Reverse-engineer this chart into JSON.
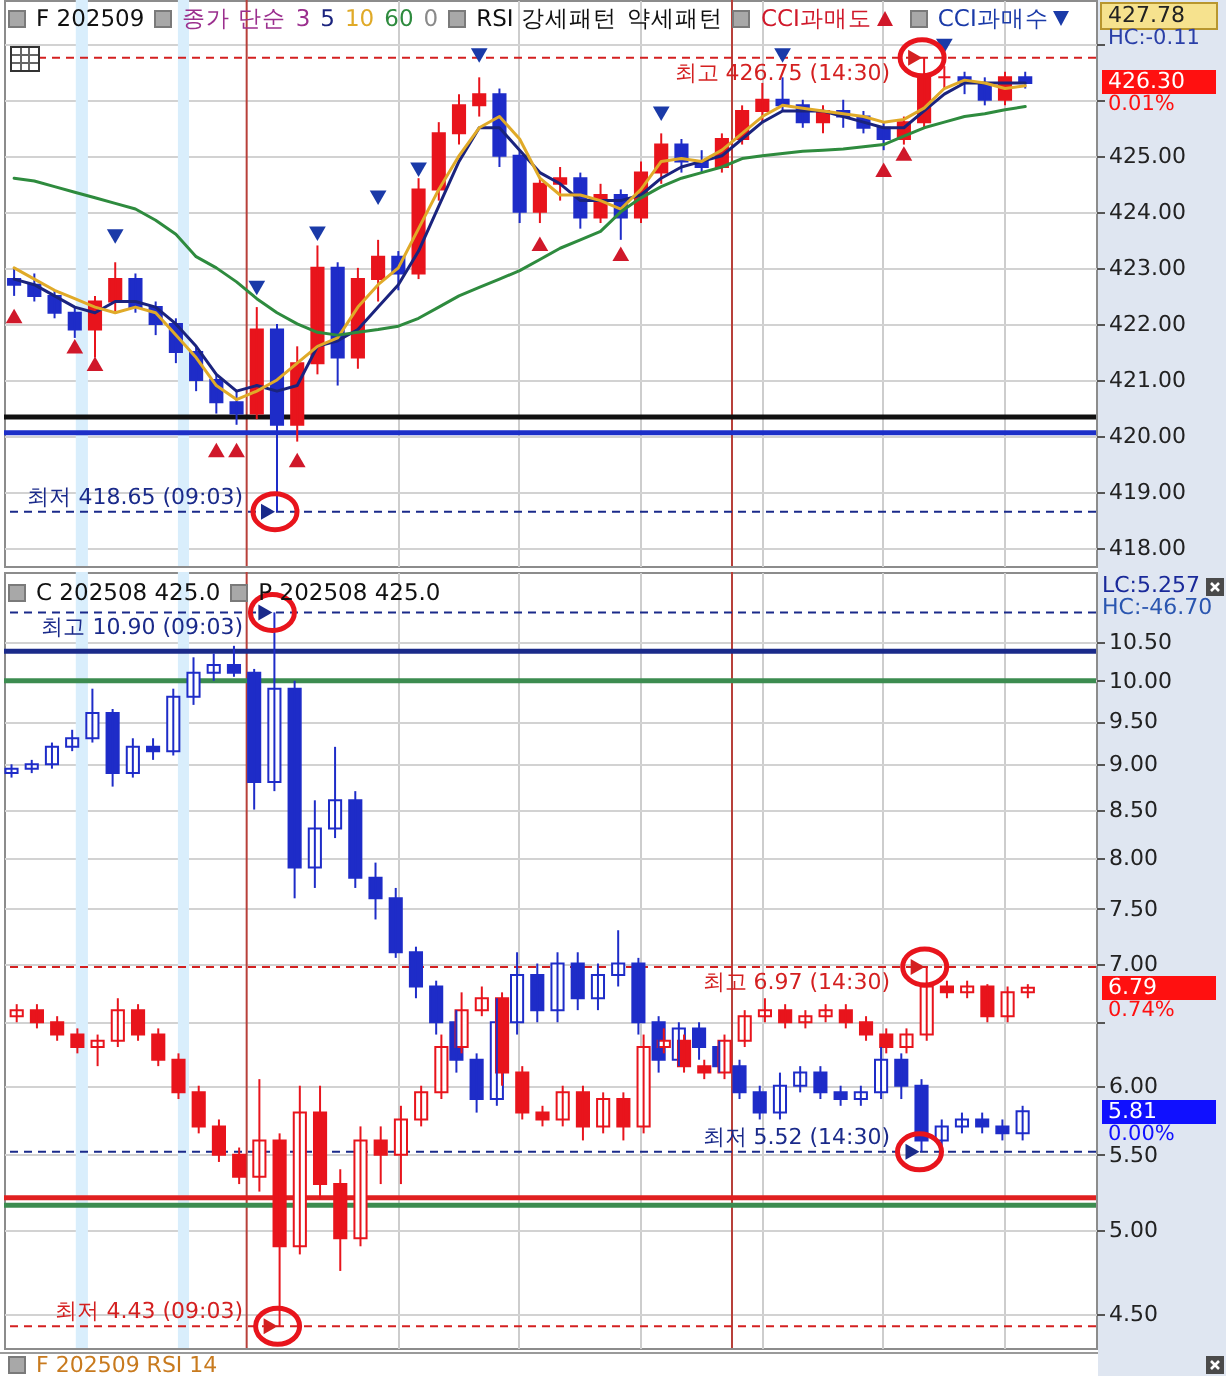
{
  "chart_data": [
    {
      "type": "candlestick",
      "title": "F 202509",
      "legend_title": "종가 단순",
      "legend": "top",
      "tick_labels": "y",
      "grid": true,
      "categories": [
        null,
        null,
        null,
        null,
        null,
        null,
        null,
        null,
        null,
        null,
        null,
        null,
        null,
        null,
        null,
        null,
        null,
        null,
        null,
        null,
        null,
        null,
        null,
        null,
        null,
        null,
        null,
        null,
        null,
        null,
        null,
        null,
        null,
        null,
        null,
        null,
        null,
        null,
        null,
        null,
        null,
        null,
        null,
        null,
        null,
        null,
        null,
        null,
        null,
        null,
        null,
        null,
        null,
        null
      ],
      "ylim": [
        417.68,
        427.78
      ],
      "yticks": [
        {
          "value": 418,
          "label": "418.00"
        },
        {
          "value": 419,
          "label": "419.00"
        },
        {
          "value": 420,
          "label": "420.00"
        },
        {
          "value": 421,
          "label": "421.00"
        },
        {
          "value": 422,
          "label": "422.00"
        },
        {
          "value": 423,
          "label": "423.00"
        },
        {
          "value": 424,
          "label": "424.00"
        },
        {
          "value": 425,
          "label": "425.00"
        },
        {
          "value": 426,
          "label": null
        },
        {
          "value": 427,
          "label": null
        }
      ],
      "series": [
        {
          "colors": [
            "#1e2cc8",
            "#1e2cc8",
            "#1e2cc8",
            "#1e2cc8",
            "#e8141c",
            "#e8141c",
            "#1e2cc8",
            "#1e2cc8",
            "#1e2cc8",
            "#1e2cc8",
            "#1e2cc8",
            "#1e2cc8",
            "#e8141c",
            "#1e2cc8",
            "#e8141c",
            "#e8141c",
            "#1e2cc8",
            "#e8141c",
            "#e8141c",
            "#1e2cc8",
            "#e8141c",
            "#e8141c",
            "#e8141c",
            "#e8141c",
            "#1e2cc8",
            "#1e2cc8",
            "#e8141c",
            "#e8141c",
            "#1e2cc8",
            "#e8141c",
            "#1e2cc8",
            "#e8141c",
            "#e8141c",
            "#1e2cc8",
            "#1e2cc8",
            "#e8141c",
            "#e8141c",
            "#e8141c",
            "#1e2cc8",
            "#1e2cc8",
            "#e8141c",
            "#1e2cc8",
            "#1e2cc8",
            "#1e2cc8",
            "#e8141c",
            "#e8141c",
            "#e8141c",
            "#1e2cc8",
            "#1e2cc8",
            "#e8141c",
            "#1e2cc8",
            null,
            null,
            null
          ],
          "ohlc": [
            [
              422.8,
              423.0,
              422.5,
              422.7
            ],
            [
              422.7,
              422.9,
              422.4,
              422.5
            ],
            [
              422.5,
              422.6,
              422.1,
              422.2
            ],
            [
              422.2,
              422.3,
              421.75,
              421.9
            ],
            [
              421.9,
              422.5,
              421.4,
              422.4
            ],
            [
              422.4,
              423.1,
              422.2,
              422.8
            ],
            [
              422.8,
              422.9,
              422.2,
              422.3
            ],
            [
              422.3,
              422.4,
              421.8,
              422.0
            ],
            [
              422.0,
              422.1,
              421.3,
              421.5
            ],
            [
              421.5,
              421.6,
              420.8,
              421.0
            ],
            [
              421.0,
              421.1,
              420.4,
              420.6
            ],
            [
              420.6,
              420.8,
              420.2,
              420.4
            ],
            [
              420.4,
              422.3,
              420.3,
              421.9
            ],
            [
              421.9,
              422.0,
              418.65,
              420.2
            ],
            [
              420.2,
              421.6,
              419.9,
              421.3
            ],
            [
              421.3,
              423.4,
              421.1,
              423.0
            ],
            [
              423.0,
              423.1,
              420.9,
              421.4
            ],
            [
              421.4,
              423.0,
              421.2,
              422.8
            ],
            [
              422.8,
              423.5,
              422.4,
              423.2
            ],
            [
              423.2,
              423.3,
              422.6,
              422.9
            ],
            [
              422.9,
              424.6,
              422.8,
              424.4
            ],
            [
              424.4,
              425.6,
              424.2,
              425.4
            ],
            [
              425.4,
              426.1,
              425.2,
              425.9
            ],
            [
              425.9,
              426.4,
              425.7,
              426.1
            ],
            [
              426.1,
              426.2,
              424.8,
              425.0
            ],
            [
              425.0,
              425.1,
              423.8,
              424.0
            ],
            [
              424.0,
              424.6,
              423.8,
              424.5
            ],
            [
              424.5,
              424.8,
              424.2,
              424.6
            ],
            [
              424.6,
              424.7,
              423.7,
              423.9
            ],
            [
              423.9,
              424.5,
              423.8,
              424.3
            ],
            [
              424.3,
              424.4,
              423.5,
              423.9
            ],
            [
              423.9,
              424.9,
              423.8,
              424.7
            ],
            [
              424.7,
              425.4,
              424.5,
              425.2
            ],
            [
              425.2,
              425.3,
              424.7,
              424.9
            ],
            [
              424.9,
              425.1,
              424.7,
              424.8
            ],
            [
              424.8,
              425.4,
              424.7,
              425.3
            ],
            [
              425.3,
              425.9,
              425.2,
              425.8
            ],
            [
              425.8,
              426.3,
              425.6,
              426.0
            ],
            [
              426.0,
              426.4,
              425.8,
              425.9
            ],
            [
              425.9,
              426.0,
              425.5,
              425.6
            ],
            [
              425.6,
              425.9,
              425.4,
              425.8
            ],
            [
              425.8,
              426.0,
              425.5,
              425.7
            ],
            [
              425.7,
              425.8,
              425.4,
              425.5
            ],
            [
              425.5,
              425.6,
              425.1,
              425.3
            ],
            [
              425.3,
              425.7,
              425.2,
              425.6
            ],
            [
              425.6,
              426.75,
              425.5,
              426.4
            ],
            [
              426.4,
              426.6,
              426.2,
              426.4
            ],
            [
              426.4,
              426.5,
              426.1,
              426.3
            ],
            [
              426.3,
              426.4,
              425.9,
              426.0
            ],
            [
              426.0,
              426.5,
              425.9,
              426.4
            ],
            [
              426.4,
              426.5,
              426.2,
              426.3
            ],
            null,
            null,
            null
          ]
        },
        {
          "type": "line",
          "name": "5",
          "color": "#1a237e",
          "values": [
            422.8,
            422.7,
            422.5,
            422.3,
            422.2,
            422.4,
            422.4,
            422.3,
            422.0,
            421.6,
            421.1,
            420.8,
            420.9,
            420.8,
            420.9,
            421.6,
            421.7,
            421.9,
            422.3,
            422.7,
            423.3,
            424.1,
            424.9,
            425.5,
            425.5,
            425.1,
            424.7,
            424.5,
            424.2,
            424.2,
            424.2,
            424.3,
            424.6,
            424.8,
            424.9,
            425.0,
            425.3,
            425.6,
            425.8,
            425.8,
            425.8,
            425.7,
            425.6,
            425.5,
            425.5,
            425.8,
            426.1,
            426.3,
            426.3,
            426.3,
            426.3,
            null,
            null,
            null
          ]
        },
        {
          "type": "line",
          "name": "10",
          "color": "#e0aa28",
          "values": [
            423.0,
            422.8,
            422.6,
            422.45,
            422.3,
            422.2,
            422.3,
            422.2,
            421.8,
            421.4,
            420.9,
            420.65,
            420.8,
            421.0,
            421.3,
            421.6,
            421.75,
            422.3,
            422.7,
            423.0,
            423.7,
            424.4,
            425.0,
            425.5,
            425.7,
            425.3,
            424.6,
            424.3,
            424.3,
            424.2,
            424.05,
            424.4,
            424.9,
            424.95,
            424.9,
            425.1,
            425.4,
            425.7,
            425.9,
            425.85,
            425.8,
            425.75,
            425.7,
            425.6,
            425.65,
            425.85,
            426.2,
            426.35,
            426.3,
            426.2,
            426.25,
            null,
            null,
            null
          ]
        },
        {
          "type": "line",
          "name": "60",
          "color": "#2e8b3e",
          "values": [
            424.6,
            424.55,
            424.45,
            424.35,
            424.25,
            424.15,
            424.05,
            423.85,
            423.6,
            423.2,
            423.0,
            422.75,
            422.45,
            422.2,
            422.0,
            421.85,
            421.8,
            421.85,
            421.9,
            421.96,
            422.1,
            422.3,
            422.5,
            422.65,
            422.8,
            422.95,
            423.15,
            423.35,
            423.5,
            423.65,
            424.0,
            424.25,
            424.45,
            424.6,
            424.7,
            424.8,
            424.95,
            425.0,
            425.04,
            425.08,
            425.1,
            425.12,
            425.16,
            425.2,
            425.35,
            425.5,
            425.6,
            425.7,
            425.75,
            425.82,
            425.88,
            null,
            null,
            null
          ]
        },
        {
          "type": "scatter",
          "name": "CCI과매도",
          "color": "#d0182a",
          "marker": "triangle",
          "values": [
            422.14,
            null,
            null,
            421.6,
            421.29,
            null,
            null,
            null,
            null,
            null,
            419.75,
            419.75,
            null,
            null,
            419.57,
            null,
            null,
            null,
            null,
            null,
            null,
            null,
            null,
            null,
            null,
            null,
            423.43,
            null,
            null,
            null,
            423.25,
            null,
            null,
            null,
            null,
            null,
            null,
            null,
            null,
            null,
            null,
            null,
            null,
            424.75,
            425.04,
            null,
            null,
            null,
            null,
            null,
            null,
            null,
            null,
            null
          ]
        },
        {
          "type": "scatter",
          "name": "CCI과매수",
          "color": "#1a3aa8",
          "marker": "triangle",
          "values": [
            null,
            null,
            null,
            null,
            null,
            423.56,
            null,
            null,
            null,
            null,
            null,
            null,
            422.64,
            null,
            null,
            423.61,
            null,
            null,
            424.25,
            null,
            424.75,
            null,
            null,
            426.79,
            null,
            null,
            null,
            null,
            null,
            null,
            null,
            null,
            425.75,
            null,
            null,
            null,
            null,
            null,
            426.79,
            null,
            null,
            null,
            null,
            null,
            null,
            null,
            426.96,
            null,
            null,
            null,
            null,
            null,
            null,
            null
          ]
        }
      ],
      "ref_lines": [
        {
          "axis": "y",
          "value": 426.75,
          "label": "최고 426.75 (14:30)",
          "color": "#d42020",
          "line_style": "dashed"
        },
        {
          "axis": "y",
          "value": 420.34,
          "color": "#101010"
        },
        {
          "axis": "y",
          "value": 420.06,
          "color": "#1c2fc8"
        },
        {
          "axis": "y",
          "value": 418.65,
          "label": "최저 418.65 (09:03)",
          "color": "#1a2a8a",
          "line_style": "dashed"
        }
      ],
      "annotations": [
        "3",
        "0",
        "RSI 강세패턴",
        "약세패턴",
        "427.78",
        "HC:-0.11",
        "426.30",
        "0.01%"
      ]
    },
    {
      "type": "candlestick",
      "tick_labels": "y",
      "grid": true,
      "log": true,
      "categories": [
        null,
        null,
        null,
        null,
        null,
        null,
        null,
        null,
        null,
        null,
        null,
        null,
        null,
        null,
        null,
        null,
        null,
        null,
        null,
        null,
        null,
        null,
        null,
        null,
        null,
        null,
        null,
        null,
        null,
        null,
        null,
        null,
        null,
        null,
        null,
        null,
        null,
        null,
        null,
        null,
        null,
        null,
        null,
        null,
        null,
        null,
        null,
        null,
        null,
        null,
        null,
        null,
        null,
        null
      ],
      "ylim": [
        4.31,
        11.47
      ],
      "yticks": [
        {
          "value": 4.5,
          "label": "4.50"
        },
        {
          "value": 5,
          "label": "5.00"
        },
        {
          "value": 5.5,
          "label": "5.50"
        },
        {
          "value": 6,
          "label": "6.00"
        },
        {
          "value": 6.5,
          "label": null
        },
        {
          "value": 7,
          "label": "7.00"
        },
        {
          "value": 7.5,
          "label": "7.50"
        },
        {
          "value": 8,
          "label": "8.00"
        },
        {
          "value": 8.5,
          "label": "8.50"
        },
        {
          "value": 9,
          "label": "9.00"
        },
        {
          "value": 9.5,
          "label": "9.50"
        },
        {
          "value": 10,
          "label": "10.00"
        },
        {
          "value": 10.5,
          "label": "10.50"
        }
      ],
      "series": [
        {
          "color": "#1e2cc8",
          "ohlc": [
            [
              8.9,
              9.0,
              8.85,
              8.95
            ],
            [
              8.95,
              9.05,
              8.9,
              9.0
            ],
            [
              9.0,
              9.25,
              8.95,
              9.2
            ],
            [
              9.2,
              9.4,
              9.15,
              9.3
            ],
            [
              9.3,
              9.9,
              9.25,
              9.6
            ],
            [
              9.6,
              9.65,
              8.75,
              8.9
            ],
            [
              8.9,
              9.3,
              8.85,
              9.2
            ],
            [
              9.2,
              9.3,
              9.05,
              9.15
            ],
            [
              9.15,
              9.9,
              9.1,
              9.8
            ],
            [
              9.8,
              10.3,
              9.7,
              10.1
            ],
            [
              10.1,
              10.35,
              10.0,
              10.2
            ],
            [
              10.2,
              10.45,
              10.05,
              10.1
            ],
            [
              10.1,
              10.15,
              8.5,
              8.8
            ],
            [
              8.8,
              10.9,
              8.7,
              9.9
            ],
            [
              9.9,
              10.0,
              7.6,
              7.9
            ],
            [
              7.9,
              8.6,
              7.7,
              8.3
            ],
            [
              8.3,
              9.2,
              8.2,
              8.6
            ],
            [
              8.6,
              8.7,
              7.7,
              7.8
            ],
            [
              7.8,
              7.95,
              7.4,
              7.6
            ],
            [
              7.6,
              7.7,
              7.05,
              7.1
            ],
            [
              7.1,
              7.15,
              6.7,
              6.8
            ],
            [
              6.8,
              6.85,
              6.4,
              6.5
            ],
            [
              6.5,
              6.6,
              6.1,
              6.2
            ],
            [
              6.2,
              6.25,
              5.8,
              5.9
            ],
            [
              5.9,
              6.7,
              5.85,
              6.5
            ],
            [
              6.5,
              7.1,
              6.4,
              6.9
            ],
            [
              6.9,
              7.0,
              6.5,
              6.6
            ],
            [
              6.6,
              7.1,
              6.5,
              7.0
            ],
            [
              7.0,
              7.1,
              6.6,
              6.7
            ],
            [
              6.7,
              7.0,
              6.6,
              6.9
            ],
            [
              6.9,
              7.3,
              6.8,
              7.0
            ],
            [
              7.0,
              7.05,
              6.4,
              6.5
            ],
            [
              6.5,
              6.55,
              6.1,
              6.2
            ],
            [
              6.2,
              6.5,
              6.15,
              6.45
            ],
            [
              6.45,
              6.5,
              6.2,
              6.3
            ],
            [
              6.3,
              6.35,
              6.1,
              6.15
            ],
            [
              6.15,
              6.2,
              5.9,
              5.95
            ],
            [
              5.95,
              6.0,
              5.75,
              5.8
            ],
            [
              5.8,
              6.1,
              5.75,
              6.0
            ],
            [
              6.0,
              6.15,
              5.95,
              6.1
            ],
            [
              6.1,
              6.15,
              5.9,
              5.95
            ],
            [
              5.95,
              6.0,
              5.85,
              5.9
            ],
            [
              5.9,
              6.0,
              5.85,
              5.95
            ],
            [
              5.95,
              6.3,
              5.9,
              6.2
            ],
            [
              6.2,
              6.25,
              5.9,
              6.0
            ],
            [
              6.0,
              6.05,
              5.52,
              5.6
            ],
            [
              5.6,
              5.75,
              5.55,
              5.7
            ],
            [
              5.7,
              5.8,
              5.65,
              5.75
            ],
            [
              5.75,
              5.8,
              5.65,
              5.7
            ],
            [
              5.7,
              5.75,
              5.6,
              5.65
            ],
            [
              5.65,
              5.85,
              5.6,
              5.81
            ],
            null,
            null,
            null
          ]
        },
        {
          "color": "#e8141c",
          "ohlc": [
            [
              6.55,
              6.65,
              6.5,
              6.6
            ],
            [
              6.6,
              6.65,
              6.45,
              6.5
            ],
            [
              6.5,
              6.55,
              6.35,
              6.4
            ],
            [
              6.4,
              6.45,
              6.25,
              6.3
            ],
            [
              6.3,
              6.4,
              6.15,
              6.35
            ],
            [
              6.35,
              6.7,
              6.3,
              6.6
            ],
            [
              6.6,
              6.65,
              6.35,
              6.4
            ],
            [
              6.4,
              6.45,
              6.15,
              6.2
            ],
            [
              6.2,
              6.25,
              5.9,
              5.95
            ],
            [
              5.95,
              6.0,
              5.65,
              5.7
            ],
            [
              5.7,
              5.75,
              5.45,
              5.5
            ],
            [
              5.5,
              5.55,
              5.3,
              5.35
            ],
            [
              5.35,
              6.05,
              5.25,
              5.6
            ],
            [
              5.6,
              5.65,
              4.43,
              4.9
            ],
            [
              4.9,
              6.0,
              4.85,
              5.8
            ],
            [
              5.8,
              6.0,
              5.2,
              5.3
            ],
            [
              5.3,
              5.4,
              4.75,
              4.95
            ],
            [
              4.95,
              5.7,
              4.9,
              5.6
            ],
            [
              5.6,
              5.7,
              5.3,
              5.5
            ],
            [
              5.5,
              5.85,
              5.3,
              5.75
            ],
            [
              5.75,
              6.0,
              5.7,
              5.95
            ],
            [
              5.95,
              6.4,
              5.9,
              6.3
            ],
            [
              6.3,
              6.75,
              6.25,
              6.6
            ],
            [
              6.6,
              6.8,
              6.55,
              6.7
            ],
            [
              6.7,
              6.75,
              6.0,
              6.1
            ],
            [
              6.1,
              6.15,
              5.75,
              5.8
            ],
            [
              5.8,
              5.85,
              5.7,
              5.75
            ],
            [
              5.75,
              6.0,
              5.7,
              5.95
            ],
            [
              5.95,
              6.0,
              5.6,
              5.7
            ],
            [
              5.7,
              5.95,
              5.65,
              5.9
            ],
            [
              5.9,
              5.95,
              5.6,
              5.7
            ],
            [
              5.7,
              6.4,
              5.65,
              6.3
            ],
            [
              6.3,
              6.45,
              6.25,
              6.35
            ],
            [
              6.35,
              6.4,
              6.1,
              6.15
            ],
            [
              6.15,
              6.2,
              6.05,
              6.1
            ],
            [
              6.1,
              6.4,
              6.05,
              6.35
            ],
            [
              6.35,
              6.6,
              6.3,
              6.55
            ],
            [
              6.55,
              6.7,
              6.5,
              6.6
            ],
            [
              6.6,
              6.65,
              6.45,
              6.5
            ],
            [
              6.5,
              6.6,
              6.45,
              6.55
            ],
            [
              6.55,
              6.65,
              6.5,
              6.6
            ],
            [
              6.6,
              6.65,
              6.45,
              6.5
            ],
            [
              6.5,
              6.55,
              6.35,
              6.4
            ],
            [
              6.4,
              6.45,
              6.25,
              6.3
            ],
            [
              6.3,
              6.45,
              6.25,
              6.4
            ],
            [
              6.4,
              6.97,
              6.35,
              6.8
            ],
            [
              6.8,
              6.85,
              6.7,
              6.75
            ],
            [
              6.75,
              6.85,
              6.7,
              6.8
            ],
            [
              6.8,
              6.82,
              6.5,
              6.55
            ],
            [
              6.55,
              6.8,
              6.5,
              6.75
            ],
            [
              6.75,
              6.82,
              6.7,
              6.79
            ],
            null,
            null,
            null
          ]
        }
      ],
      "ref_lines": [
        {
          "axis": "y",
          "value": 10.9,
          "label": "최고 10.90 (09:03)",
          "color": "#1a2a8a",
          "line_style": "dashed"
        },
        {
          "axis": "y",
          "value": 10.38,
          "color": "#1a2a8a"
        },
        {
          "axis": "y",
          "value": 10.0,
          "color": "#3c8c50"
        },
        {
          "axis": "y",
          "value": 6.97,
          "label": "최고 6.97 (14:30)",
          "color": "#d42020",
          "line_style": "dashed"
        },
        {
          "axis": "y",
          "value": 5.52,
          "label": "최저 5.52 (14:30)",
          "color": "#1a2a8a",
          "line_style": "dashed"
        },
        {
          "axis": "y",
          "value": 5.21,
          "color": "#e02020"
        },
        {
          "axis": "y",
          "value": 5.16,
          "color": "#3c8c50"
        },
        {
          "axis": "y",
          "value": 4.43,
          "label": "최저 4.43 (09:03)",
          "color": "#d42020",
          "line_style": "dashed"
        }
      ],
      "annotations": [
        "C 202508 425.0",
        "P 202508 425.0",
        "LC:5.257",
        "HC:-46.70",
        "6.79",
        "0.74%",
        "5.81",
        "0.00%",
        "F 202509 RSI 14"
      ]
    }
  ]
}
